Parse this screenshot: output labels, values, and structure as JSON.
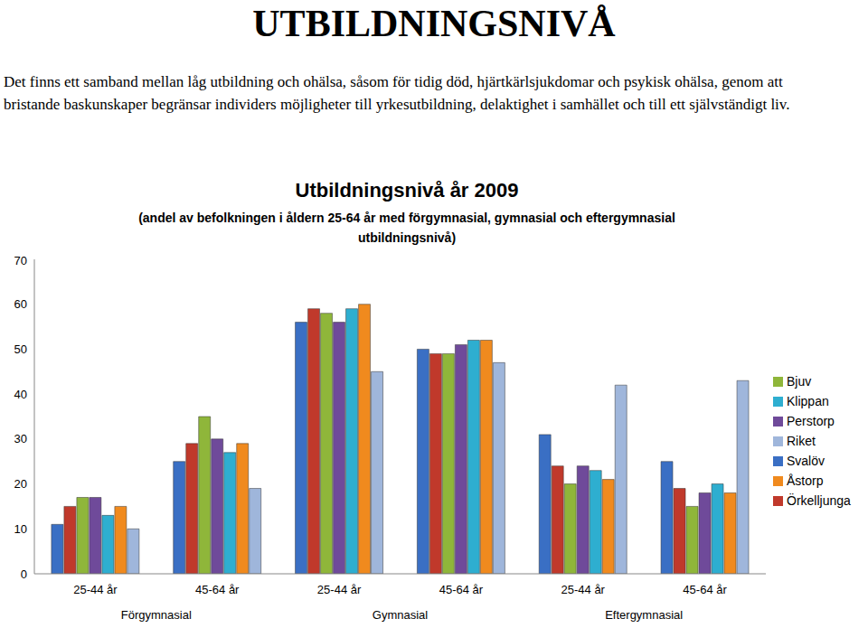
{
  "heading": "UTBILDNINGSNIVÅ",
  "text": "Det finns ett samband mellan låg utbildning och ohälsa, såsom för tidig död, hjärtkärlsjukdomar och psykisk ohälsa, genom att bristande baskunskaper begränsar individers möjligheter till yrkesutbildning, delaktighet i samhället och till ett självständigt liv.",
  "chart_data": {
    "type": "bar",
    "title": "Utbildningsnivå år 2009",
    "subtitle": "(andel av befolkningen i åldern 25-64 år med förgymnasial, gymnasial och eftergymnasial utbildningsnivå)",
    "categories": [
      "25-44 år",
      "45-64 år",
      "25-44 år",
      "45-64 år",
      "25-44 år",
      "45-64 år"
    ],
    "category_groups": [
      "Förgymnasial",
      "Gymnasial",
      "Eftergymnasial"
    ],
    "series": [
      {
        "name": "Svalöv",
        "color": "#3a6fc4",
        "values": [
          11,
          25,
          56,
          50,
          31,
          25
        ]
      },
      {
        "name": "Örkelljunga",
        "color": "#c0392b",
        "values": [
          15,
          29,
          59,
          49,
          24,
          19
        ]
      },
      {
        "name": "Bjuv",
        "color": "#8fb63a",
        "values": [
          17,
          35,
          58,
          49,
          20,
          15
        ]
      },
      {
        "name": "Perstorp",
        "color": "#6f4a9a",
        "values": [
          17,
          30,
          56,
          51,
          24,
          18
        ]
      },
      {
        "name": "Klippan",
        "color": "#2eaed0",
        "values": [
          13,
          27,
          59,
          52,
          23,
          20
        ]
      },
      {
        "name": "Åstorp",
        "color": "#f08a1e",
        "values": [
          15,
          29,
          60,
          52,
          21,
          18
        ]
      },
      {
        "name": "Riket",
        "color": "#9fb6db",
        "values": [
          10,
          19,
          45,
          47,
          42,
          43
        ]
      }
    ],
    "ylim": [
      0,
      70
    ],
    "yticks": [
      0,
      10,
      20,
      30,
      40,
      50,
      60,
      70
    ],
    "grid": false,
    "legend": "right"
  }
}
